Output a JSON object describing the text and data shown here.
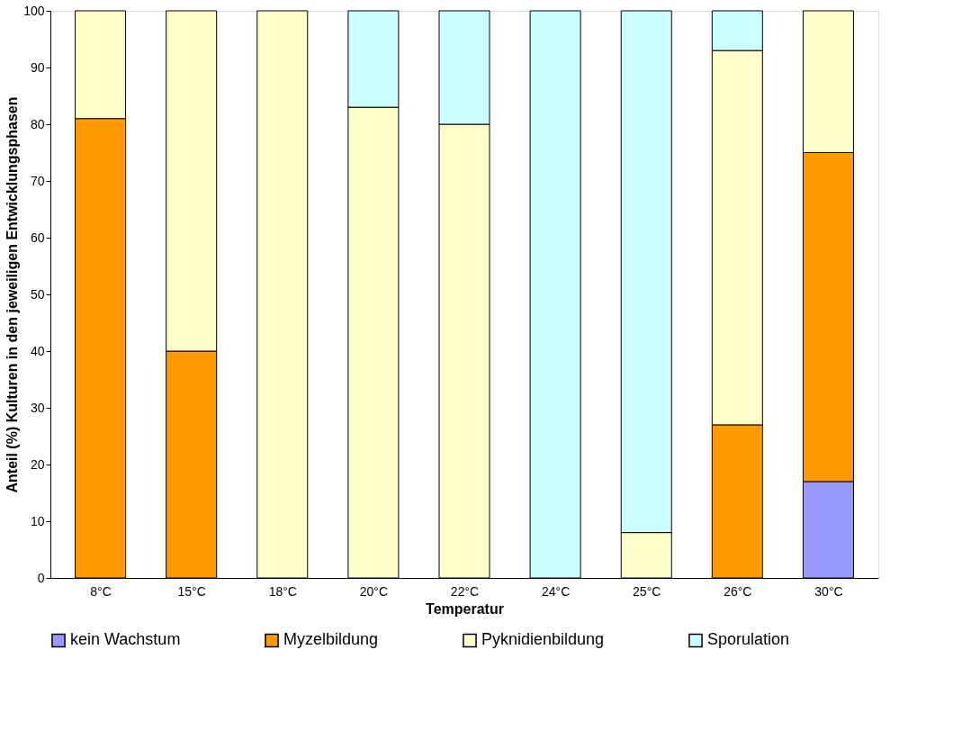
{
  "chart_data": {
    "type": "bar",
    "stacked": true,
    "xlabel": "Temperatur",
    "ylabel": "Anteil (%) Kulturen in den jeweiligen Entwicklungsphasen",
    "categories": [
      "8°C",
      "15°C",
      "18°C",
      "20°C",
      "22°C",
      "24°C",
      "25°C",
      "26°C",
      "30°C"
    ],
    "series": [
      {
        "name": "kein Wachstum",
        "color": "#9999ff",
        "values": [
          null,
          null,
          null,
          null,
          null,
          null,
          null,
          null,
          17
        ]
      },
      {
        "name": "Myzelbildung",
        "color": "#ff9900",
        "values": [
          81,
          40,
          null,
          null,
          null,
          null,
          null,
          27,
          58
        ]
      },
      {
        "name": "Pyknidienbildung",
        "color": "#ffffcc",
        "values": [
          19,
          60,
          100,
          83,
          80,
          null,
          8,
          66,
          25
        ]
      },
      {
        "name": "Sporulation",
        "color": "#ccffff",
        "values": [
          null,
          null,
          null,
          17,
          20,
          100,
          92,
          7,
          null
        ]
      }
    ],
    "ylim": [
      0,
      100
    ],
    "yticks": [
      0,
      10,
      20,
      30,
      40,
      50,
      60,
      70,
      80,
      90,
      100
    ],
    "grid": false,
    "legend": "bottom"
  }
}
